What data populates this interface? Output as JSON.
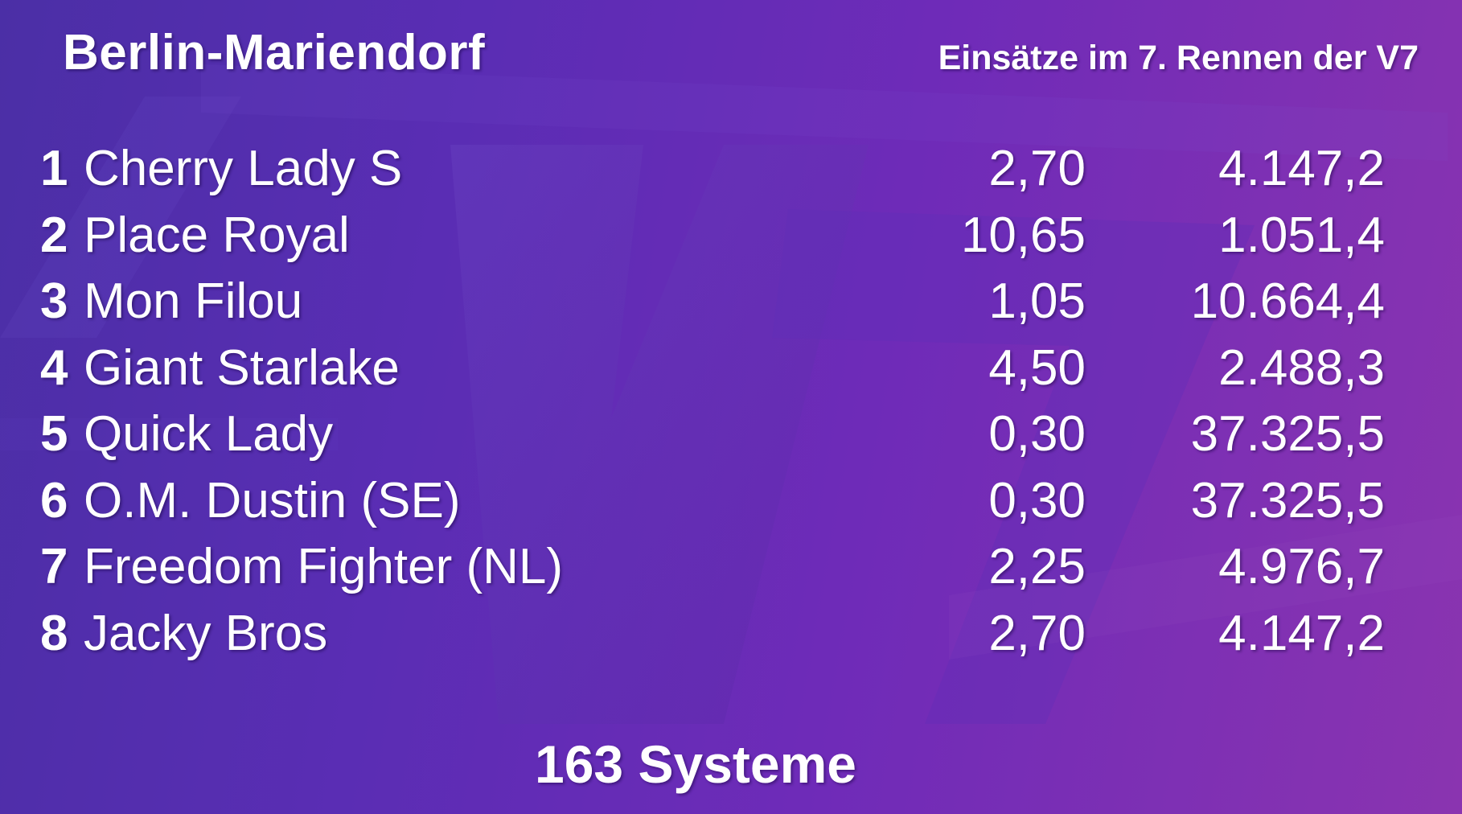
{
  "header": {
    "title": "Berlin-Mariendorf",
    "subtitle": "Einsätze im 7. Rennen der V7"
  },
  "background": {
    "logo_text": "V7"
  },
  "rows": [
    {
      "num": "1",
      "name": "Cherry Lady S",
      "quote": "2,70",
      "stake": "4.147,2"
    },
    {
      "num": "2",
      "name": "Place Royal",
      "quote": "10,65",
      "stake": "1.051,4"
    },
    {
      "num": "3",
      "name": "Mon Filou",
      "quote": "1,05",
      "stake": "10.664,4"
    },
    {
      "num": "4",
      "name": "Giant Starlake",
      "quote": "4,50",
      "stake": "2.488,3"
    },
    {
      "num": "5",
      "name": "Quick Lady",
      "quote": "0,30",
      "stake": "37.325,5"
    },
    {
      "num": "6",
      "name": "O.M. Dustin (SE)",
      "quote": "0,30",
      "stake": "37.325,5"
    },
    {
      "num": "7",
      "name": "Freedom Fighter (NL)",
      "quote": "2,25",
      "stake": "4.976,7"
    },
    {
      "num": "8",
      "name": "Jacky Bros",
      "quote": "2,70",
      "stake": "4.147,2"
    }
  ],
  "footer": {
    "systems": "163 Systeme"
  },
  "colors": {
    "background_start": "#4b2fa6",
    "background_end": "#8a34b0",
    "text": "#ffffff"
  }
}
